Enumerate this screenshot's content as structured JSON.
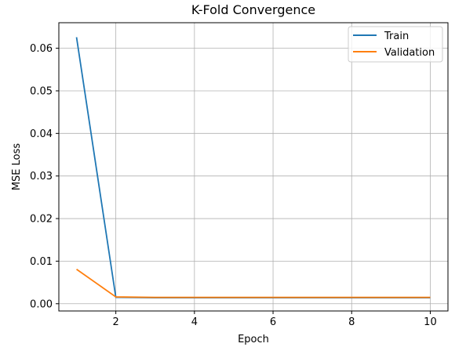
{
  "chart_data": {
    "type": "line",
    "title": "K-Fold Convergence",
    "xlabel": "Epoch",
    "ylabel": "MSE Loss",
    "xlim": [
      0.55,
      10.45
    ],
    "ylim": [
      -0.0017,
      0.066
    ],
    "xticks": [
      2,
      4,
      6,
      8,
      10
    ],
    "xtick_labels": [
      "2",
      "4",
      "6",
      "8",
      "10"
    ],
    "yticks": [
      0.0,
      0.01,
      0.02,
      0.03,
      0.04,
      0.05,
      0.06
    ],
    "ytick_labels": [
      "0.00",
      "0.01",
      "0.02",
      "0.03",
      "0.04",
      "0.05",
      "0.06"
    ],
    "grid": true,
    "legend_position": "top-right",
    "x": [
      1,
      2,
      3,
      4,
      5,
      6,
      7,
      8,
      9,
      10
    ],
    "series": [
      {
        "name": "Train",
        "color": "#1f77b4",
        "values": [
          0.0626,
          0.0015,
          0.0014,
          0.0014,
          0.0014,
          0.0014,
          0.0014,
          0.0014,
          0.0014,
          0.0014
        ]
      },
      {
        "name": "Validation",
        "color": "#ff7f0e",
        "values": [
          0.0081,
          0.0016,
          0.0015,
          0.0015,
          0.0015,
          0.0015,
          0.0015,
          0.0015,
          0.0015,
          0.0015
        ]
      }
    ]
  }
}
